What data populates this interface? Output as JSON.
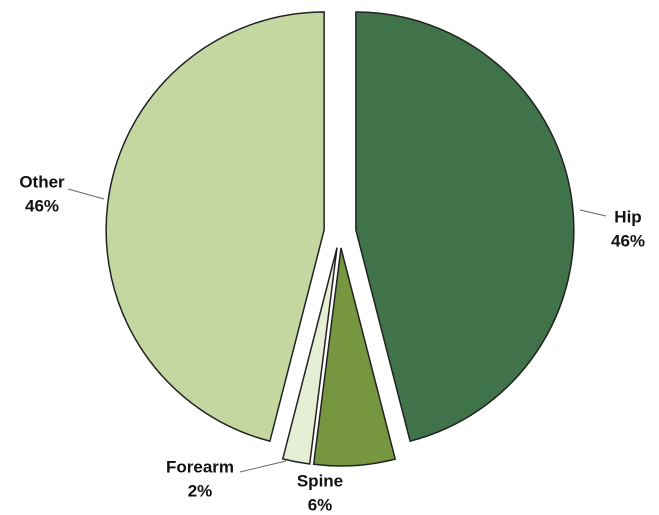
{
  "chart_data": {
    "type": "pie",
    "categories": [
      "Hip",
      "Spine",
      "Forearm",
      "Other"
    ],
    "values": [
      46,
      6,
      2,
      46
    ],
    "value_labels": [
      "46%",
      "6%",
      "2%",
      "46%"
    ],
    "colors": [
      "#41734a",
      "#76973f",
      "#e6efd5",
      "#c5d7a0"
    ]
  }
}
